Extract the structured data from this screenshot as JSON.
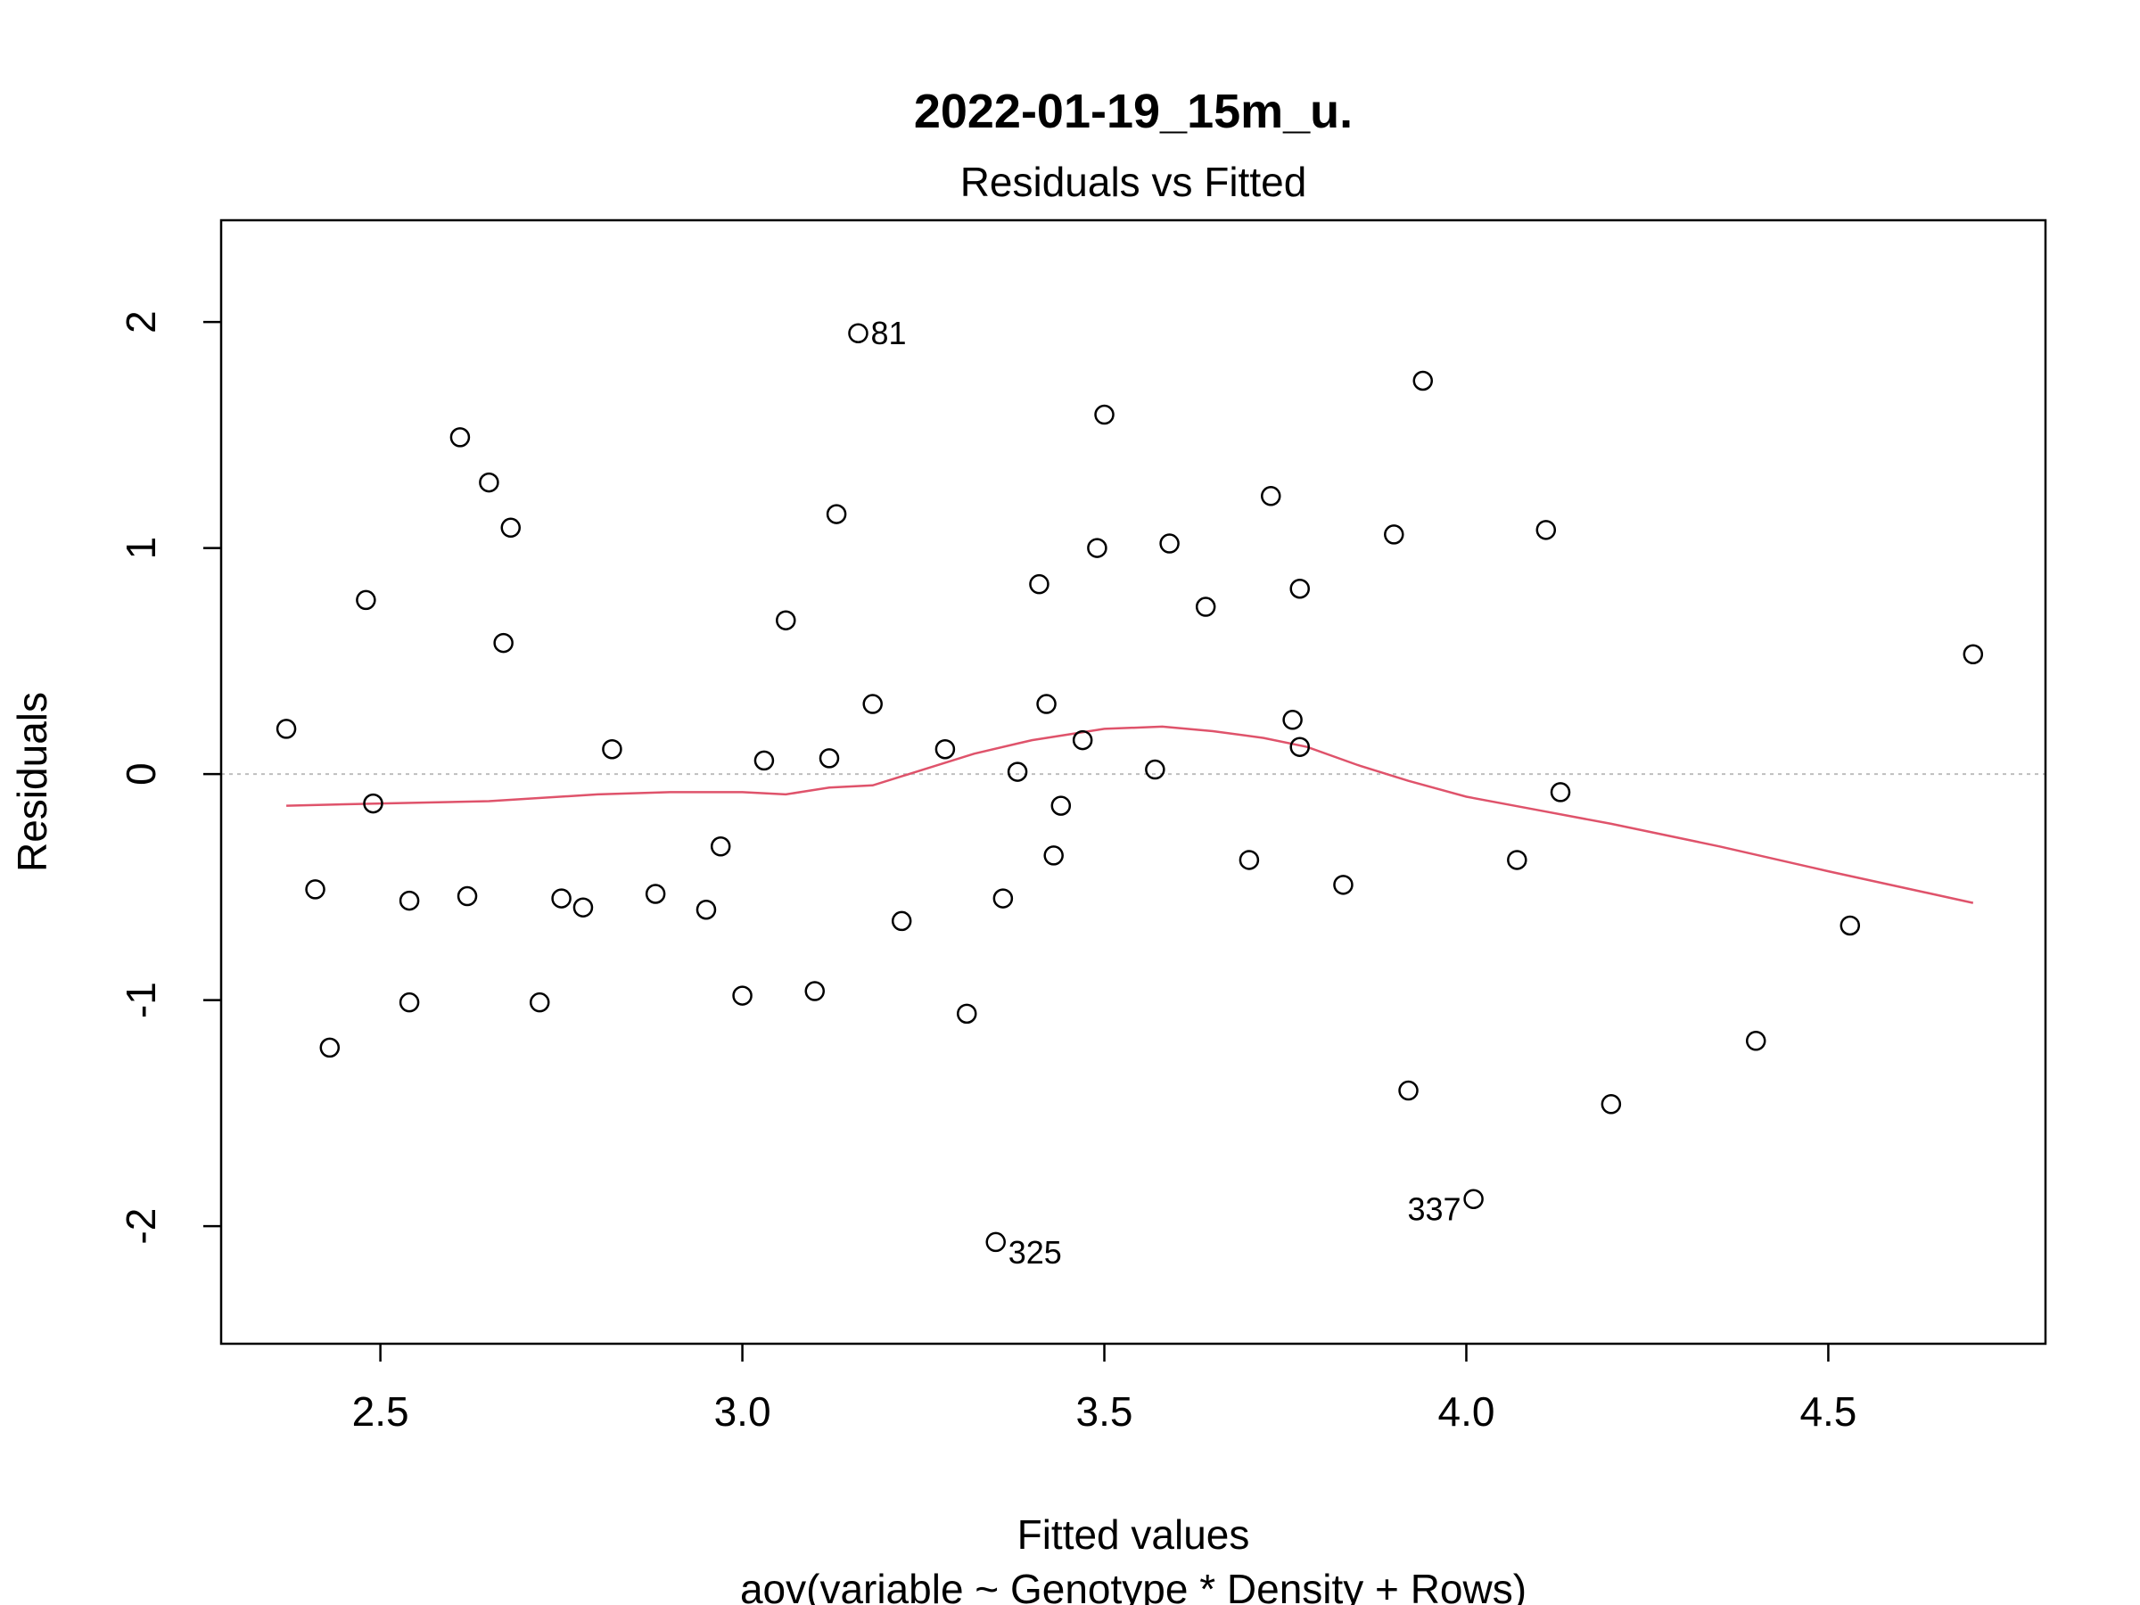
{
  "chart_data": {
    "type": "scatter",
    "title": "2022-01-19_15m_u.",
    "subtitle": "Residuals vs Fitted",
    "xlabel": "Fitted values",
    "ylabel": "Residuals",
    "caption": "aov(variable ~ Genotype * Density + Rows)",
    "xlim": [
      2.28,
      4.8
    ],
    "ylim": [
      -2.52,
      2.45
    ],
    "x_ticks": [
      2.5,
      3.0,
      3.5,
      4.0,
      4.5
    ],
    "x_tick_labels": [
      "2.5",
      "3.0",
      "3.5",
      "4.0",
      "4.5"
    ],
    "y_ticks": [
      2,
      1,
      0,
      -1,
      -2
    ],
    "y_tick_labels": [
      "2",
      "1",
      "0",
      "-1",
      "-2"
    ],
    "reference_line_y": 0,
    "grid": false,
    "colors": {
      "points": "#000000",
      "smooth": "#DF536B",
      "reference": "#BEBEBE"
    },
    "points": [
      {
        "x": 2.37,
        "y": 0.2
      },
      {
        "x": 2.41,
        "y": -0.51
      },
      {
        "x": 2.43,
        "y": -1.21
      },
      {
        "x": 2.48,
        "y": 0.77
      },
      {
        "x": 2.49,
        "y": -0.13
      },
      {
        "x": 2.54,
        "y": -0.56
      },
      {
        "x": 2.54,
        "y": -1.01
      },
      {
        "x": 2.61,
        "y": 1.49
      },
      {
        "x": 2.62,
        "y": -0.54
      },
      {
        "x": 2.65,
        "y": 1.29
      },
      {
        "x": 2.67,
        "y": 0.58
      },
      {
        "x": 2.68,
        "y": 1.09
      },
      {
        "x": 2.72,
        "y": -1.01
      },
      {
        "x": 2.75,
        "y": -0.55
      },
      {
        "x": 2.78,
        "y": -0.59
      },
      {
        "x": 2.82,
        "y": 0.11
      },
      {
        "x": 2.88,
        "y": -0.53
      },
      {
        "x": 2.95,
        "y": -0.6
      },
      {
        "x": 2.97,
        "y": -0.32
      },
      {
        "x": 3.0,
        "y": -0.98
      },
      {
        "x": 3.03,
        "y": 0.06
      },
      {
        "x": 3.06,
        "y": 0.68
      },
      {
        "x": 3.1,
        "y": -0.96
      },
      {
        "x": 3.12,
        "y": 0.07
      },
      {
        "x": 3.13,
        "y": 1.15
      },
      {
        "x": 3.16,
        "y": 1.95,
        "label": "81"
      },
      {
        "x": 3.18,
        "y": 0.31
      },
      {
        "x": 3.22,
        "y": -0.65
      },
      {
        "x": 3.28,
        "y": 0.11
      },
      {
        "x": 3.31,
        "y": -1.06
      },
      {
        "x": 3.35,
        "y": -2.07,
        "label": "325"
      },
      {
        "x": 3.36,
        "y": -0.55
      },
      {
        "x": 3.38,
        "y": 0.01
      },
      {
        "x": 3.41,
        "y": 0.84
      },
      {
        "x": 3.42,
        "y": 0.31
      },
      {
        "x": 3.43,
        "y": -0.36
      },
      {
        "x": 3.44,
        "y": -0.14
      },
      {
        "x": 3.47,
        "y": 0.15
      },
      {
        "x": 3.49,
        "y": 1.0
      },
      {
        "x": 3.5,
        "y": 1.59
      },
      {
        "x": 3.57,
        "y": 0.02
      },
      {
        "x": 3.59,
        "y": 1.02
      },
      {
        "x": 3.64,
        "y": 0.74
      },
      {
        "x": 3.7,
        "y": -0.38
      },
      {
        "x": 3.73,
        "y": 1.23
      },
      {
        "x": 3.76,
        "y": 0.24
      },
      {
        "x": 3.77,
        "y": 0.82
      },
      {
        "x": 3.77,
        "y": 0.12
      },
      {
        "x": 3.83,
        "y": -0.49
      },
      {
        "x": 3.9,
        "y": 1.06
      },
      {
        "x": 3.92,
        "y": -1.4
      },
      {
        "x": 3.94,
        "y": 1.74
      },
      {
        "x": 4.01,
        "y": -1.88,
        "label": "337"
      },
      {
        "x": 4.07,
        "y": -0.38
      },
      {
        "x": 4.11,
        "y": 1.08
      },
      {
        "x": 4.13,
        "y": -0.08
      },
      {
        "x": 4.2,
        "y": -1.46
      },
      {
        "x": 4.4,
        "y": -1.18
      },
      {
        "x": 4.53,
        "y": -0.67
      },
      {
        "x": 4.7,
        "y": 0.53
      }
    ],
    "smooth": {
      "x": [
        2.37,
        2.5,
        2.65,
        2.8,
        2.9,
        3.0,
        3.06,
        3.12,
        3.18,
        3.25,
        3.32,
        3.4,
        3.5,
        3.58,
        3.65,
        3.72,
        3.78,
        3.85,
        3.92,
        4.0,
        4.1,
        4.2,
        4.35,
        4.5,
        4.7
      ],
      "y": [
        -0.14,
        -0.13,
        -0.12,
        -0.09,
        -0.08,
        -0.08,
        -0.09,
        -0.06,
        -0.05,
        0.02,
        0.09,
        0.15,
        0.2,
        0.21,
        0.19,
        0.16,
        0.12,
        0.04,
        -0.03,
        -0.1,
        -0.16,
        -0.22,
        -0.32,
        -0.43,
        -0.57
      ]
    }
  }
}
